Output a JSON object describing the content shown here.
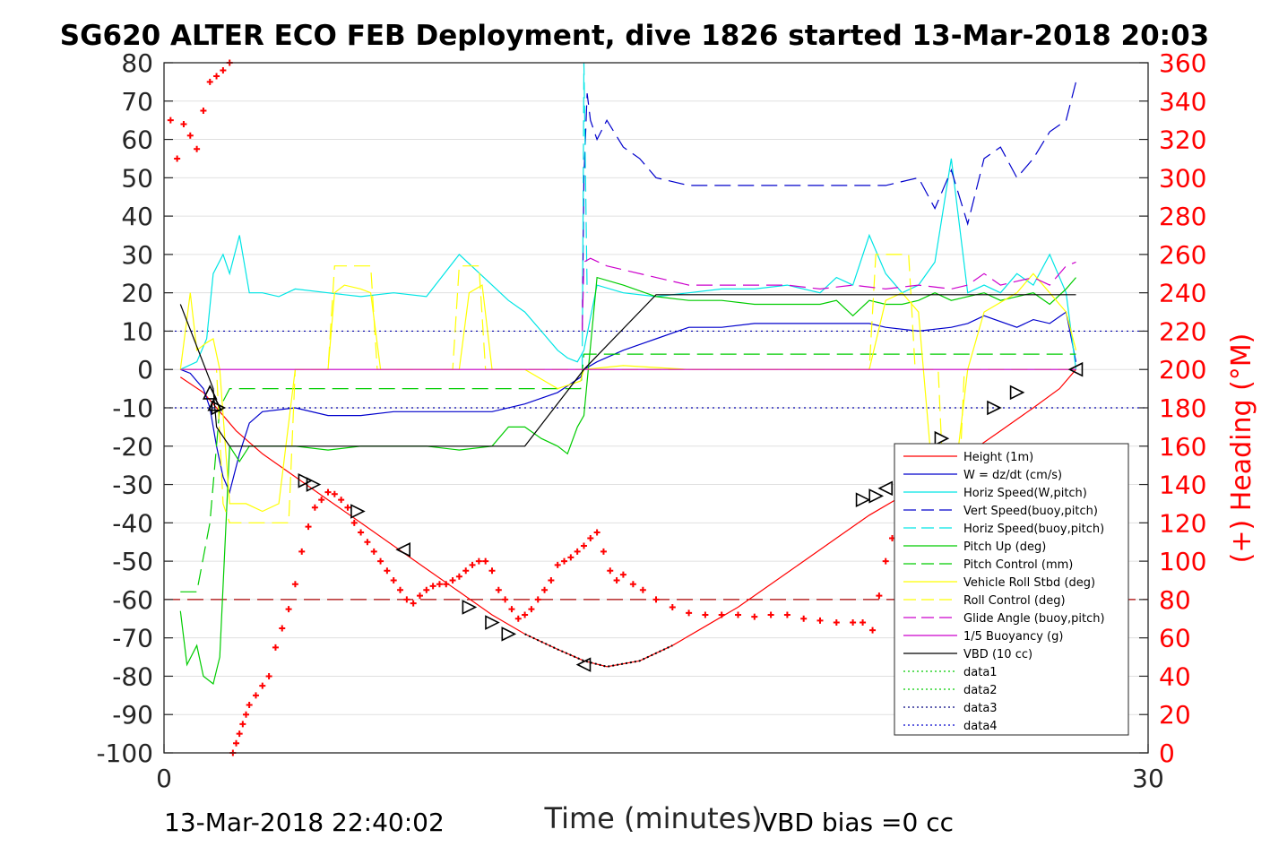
{
  "title": "SG620 ALTER ECO FEB Deployment, dive 1826 started 13-Mar-2018 20:03",
  "xlabel": "Time (minutes)",
  "ylabel_right": "(+) Heading (°M)",
  "footer_left": "13-Mar-2018 22:40:02",
  "footer_right": "VBD bias =0 cc",
  "chart_data": {
    "type": "line",
    "xlim": [
      0,
      30
    ],
    "ylim_left": [
      -100,
      80
    ],
    "ylim_right": [
      0,
      360
    ],
    "xticks": [
      0,
      30
    ],
    "yticks_left": [
      80,
      70,
      60,
      50,
      40,
      30,
      20,
      10,
      0,
      -10,
      -20,
      -30,
      -40,
      -50,
      -60,
      -70,
      -80,
      -90,
      -100
    ],
    "yticks_right": [
      360,
      340,
      320,
      300,
      280,
      260,
      240,
      220,
      200,
      180,
      160,
      140,
      120,
      100,
      80,
      60,
      40,
      20,
      0
    ],
    "grid": "horizontal",
    "legend_position": "lower-right",
    "series": [
      {
        "name": "Height (1m)",
        "color": "#ff0000",
        "style": "solid",
        "x": [
          0.5,
          1.2,
          1.6,
          2.2,
          3,
          4,
          5,
          6,
          7,
          8,
          9,
          10,
          11,
          12,
          12.8,
          13.5,
          14.5,
          15.5,
          16.5,
          17.5,
          18.5,
          19.5,
          20.5,
          21.5,
          22.5,
          23.5,
          24.5,
          25.5,
          26.5,
          27.3,
          27.8
        ],
        "y": [
          -2,
          -6,
          -10,
          -16,
          -22,
          -28,
          -34,
          -40,
          -46,
          -52,
          -58,
          -64,
          -69,
          -73,
          -76,
          -77.5,
          -76,
          -72,
          -67,
          -62,
          -56,
          -50,
          -44,
          -38,
          -33,
          -27,
          -22,
          -16,
          -10,
          -5,
          0
        ]
      },
      {
        "name": "W = dz/dt (cm/s)",
        "color": "#0000cc",
        "style": "solid",
        "x": [
          0.5,
          0.8,
          1.0,
          1.2,
          1.4,
          1.6,
          1.8,
          2.0,
          2.3,
          2.6,
          3,
          4,
          5,
          6,
          7,
          8,
          9,
          10,
          11,
          12,
          12.7,
          12.8,
          13.2,
          14,
          15,
          16,
          17,
          18,
          19,
          20,
          21,
          21.5,
          22,
          23,
          24,
          24.5,
          25,
          26,
          26.5,
          27,
          27.5,
          27.8
        ],
        "y": [
          0,
          -1,
          -3,
          -5,
          -10,
          -20,
          -28,
          -32,
          -22,
          -14,
          -11,
          -10,
          -12,
          -12,
          -11,
          -11,
          -11,
          -11,
          -9,
          -6,
          -2,
          0,
          2,
          5,
          8,
          11,
          11,
          12,
          12,
          12,
          12,
          12,
          11,
          10,
          11,
          12,
          14,
          11,
          13,
          12,
          15,
          2
        ]
      },
      {
        "name": "Horiz Speed(W,pitch)",
        "color": "#00e5e5",
        "style": "solid",
        "x": [
          0.5,
          1.0,
          1.3,
          1.5,
          1.8,
          2.0,
          2.3,
          2.6,
          3,
          3.5,
          4,
          5,
          6,
          7,
          8,
          9,
          10,
          10.5,
          11,
          11.5,
          12,
          12.3,
          12.6,
          12.8,
          13.2,
          14,
          15,
          16,
          17,
          18,
          19,
          20,
          20.5,
          21,
          21.5,
          22,
          22.5,
          23,
          23.5,
          24,
          24.5,
          25,
          25.5,
          26,
          26.5,
          27,
          27.5,
          27.8
        ],
        "y": [
          0,
          2,
          8,
          25,
          30,
          25,
          35,
          20,
          20,
          19,
          21,
          20,
          19,
          20,
          19,
          30,
          22,
          18,
          15,
          10,
          5,
          3,
          2,
          5,
          22,
          20,
          19,
          20,
          21,
          21,
          22,
          20,
          24,
          22,
          35,
          25,
          20,
          22,
          28,
          55,
          20,
          22,
          20,
          25,
          22,
          30,
          20,
          0
        ]
      },
      {
        "name": "Vert Speed(buoy,pitch)",
        "color": "#0000cc",
        "style": "dashed",
        "x": [
          12.75,
          12.8,
          12.9,
          13.0,
          13.2,
          13.5,
          14,
          14.5,
          15,
          16,
          17,
          18,
          19,
          20,
          21,
          22,
          23,
          23.5,
          24,
          24.5,
          25,
          25.5,
          26,
          26.5,
          27,
          27.5,
          27.8
        ],
        "y": [
          10,
          50,
          72,
          65,
          60,
          65,
          58,
          55,
          50,
          48,
          48,
          48,
          48,
          48,
          48,
          48,
          50,
          42,
          52,
          38,
          55,
          58,
          50,
          55,
          62,
          65,
          75
        ]
      },
      {
        "name": "Horiz Speed(buoy,pitch)",
        "color": "#00e5e5",
        "style": "dashed",
        "x": [
          12.75,
          12.8,
          12.9
        ],
        "y": [
          0,
          80,
          20
        ]
      },
      {
        "name": "Pitch Up (deg)",
        "color": "#00cc00",
        "style": "solid",
        "x": [
          0.5,
          0.7,
          1.0,
          1.2,
          1.5,
          1.7,
          2.0,
          2.3,
          2.6,
          3,
          4,
          5,
          6,
          7,
          8,
          9,
          10,
          10.5,
          11,
          11.5,
          12,
          12.3,
          12.6,
          12.8,
          13.2,
          14,
          15,
          16,
          17,
          18,
          19,
          20,
          20.5,
          21,
          21.5,
          22,
          22.5,
          23,
          23.5,
          24,
          24.5,
          25,
          25.5,
          26,
          26.5,
          27,
          27.5,
          27.8
        ],
        "y": [
          -63,
          -77,
          -72,
          -80,
          -82,
          -75,
          -20,
          -24,
          -20,
          -20,
          -20,
          -21,
          -20,
          -20,
          -20,
          -21,
          -20,
          -15,
          -15,
          -18,
          -20,
          -22,
          -15,
          -12,
          24,
          22,
          19,
          18,
          18,
          17,
          17,
          17,
          18,
          14,
          18,
          17,
          17,
          18,
          20,
          18,
          19,
          20,
          18,
          19,
          20,
          17,
          21,
          24
        ]
      },
      {
        "name": "Pitch Control (mm)",
        "color": "#00cc00",
        "style": "dashed",
        "x": [
          0.5,
          1.0,
          1.4,
          1.7,
          2.0,
          3,
          5,
          7,
          9,
          11,
          12.7,
          12.8,
          14,
          16,
          18,
          20,
          22,
          24,
          26,
          27.8
        ],
        "y": [
          -58,
          -58,
          -40,
          -10,
          -5,
          -5,
          -5,
          -5,
          -5,
          -5,
          -5,
          4,
          4,
          4,
          4,
          4,
          4,
          4,
          4,
          4
        ]
      },
      {
        "name": "Vehicle Roll Stbd (deg)",
        "color": "#ffff00",
        "style": "solid",
        "x": [
          0.5,
          0.8,
          1.0,
          1.3,
          1.5,
          1.7,
          2.0,
          2.5,
          3,
          3.5,
          4,
          5,
          5.2,
          5.5,
          6,
          6.3,
          6.6,
          7,
          7.5,
          8,
          9,
          9.3,
          9.7,
          10,
          11,
          12,
          12.7,
          12.8,
          14,
          16,
          18,
          20,
          21.5,
          22,
          22.5,
          23,
          23.5,
          24,
          24.5,
          25,
          26,
          26.5,
          27,
          27.5,
          27.8
        ],
        "y": [
          0,
          20,
          5,
          7,
          8,
          0,
          -35,
          -35,
          -37,
          -35,
          0,
          0,
          20,
          22,
          21,
          20,
          0,
          0,
          0,
          0,
          0,
          20,
          22,
          0,
          0,
          -5,
          -3,
          0,
          1,
          0,
          0,
          0,
          0,
          18,
          20,
          15,
          -35,
          -36,
          0,
          15,
          20,
          25,
          20,
          15,
          5
        ]
      },
      {
        "name": "Roll Control (deg)",
        "color": "#ffff00",
        "style": "dashed",
        "x": [
          0.5,
          1.6,
          1.8,
          2.0,
          3.5,
          3.8,
          4.0,
          5.0,
          5.2,
          6.3,
          6.5,
          8.8,
          9.0,
          9.6,
          9.8,
          12.7,
          12.8,
          21.5,
          21.7,
          22.7,
          22.9,
          23.6,
          23.8,
          24.2,
          24.4,
          27.8
        ],
        "y": [
          0,
          0,
          -35,
          -40,
          -40,
          -40,
          0,
          0,
          27,
          27,
          0,
          0,
          27,
          27,
          0,
          0,
          0,
          0,
          30,
          30,
          0,
          0,
          -38,
          -38,
          0,
          0
        ]
      },
      {
        "name": "Glide Angle (buoy,pitch)",
        "color": "#cc00cc",
        "style": "dashed",
        "x": [
          12.75,
          12.8,
          13.0,
          13.5,
          14,
          15,
          16,
          17,
          18,
          19,
          20,
          21,
          22,
          23,
          24,
          24.5,
          25,
          25.5,
          26,
          26.5,
          27,
          27.5,
          27.8
        ],
        "y": [
          10,
          28,
          29,
          27,
          26,
          24,
          22,
          22,
          22,
          22,
          21,
          22,
          21,
          22,
          21,
          22,
          25,
          22,
          23,
          24,
          22,
          27,
          28
        ]
      },
      {
        "name": "1/5 Buoyancy (g)",
        "color": "#cc00cc",
        "style": "solid",
        "x": [
          0.5,
          27.8
        ],
        "y": [
          0,
          0
        ]
      },
      {
        "name": "VBD (10 cc)",
        "color": "#000000",
        "style": "solid",
        "x": [
          0.5,
          1.5,
          1.6,
          2.0,
          10.0,
          11.0,
          12.8,
          15.0,
          27.8
        ],
        "y": [
          17,
          -5,
          -15,
          -20,
          -20,
          -20,
          0,
          19.5,
          19.5
        ]
      },
      {
        "name": "data1",
        "color": "#00cc00",
        "style": "dotted",
        "x": [],
        "y": []
      },
      {
        "name": "data2",
        "color": "#00cc00",
        "style": "dotted",
        "x": [],
        "y": []
      },
      {
        "name": "data3",
        "color": "#000080",
        "style": "dotted",
        "x": [],
        "y": []
      },
      {
        "name": "data4",
        "color": "#0000cc",
        "style": "dotted",
        "x": [],
        "y": []
      }
    ],
    "reference_lines": [
      {
        "y": 10,
        "color": "#0000aa",
        "style": "dotted"
      },
      {
        "y": -10,
        "color": "#0000aa",
        "style": "dotted"
      },
      {
        "y": -60,
        "color": "#aa0000",
        "style": "dashed"
      }
    ],
    "heading": {
      "color": "#ff0000",
      "marker": "+",
      "axis": "right",
      "x": [
        0.2,
        0.4,
        0.6,
        0.8,
        1.0,
        1.2,
        1.4,
        1.6,
        1.8,
        2.0,
        2.1,
        2.2,
        2.3,
        2.4,
        2.5,
        2.6,
        2.8,
        3.0,
        3.2,
        3.4,
        3.6,
        3.8,
        4.0,
        4.2,
        4.4,
        4.6,
        4.8,
        5.0,
        5.2,
        5.4,
        5.6,
        5.8,
        6.0,
        6.2,
        6.4,
        6.6,
        6.8,
        7.0,
        7.2,
        7.4,
        7.6,
        7.8,
        8.0,
        8.2,
        8.4,
        8.6,
        8.8,
        9.0,
        9.2,
        9.4,
        9.6,
        9.8,
        10.0,
        10.2,
        10.4,
        10.6,
        10.8,
        11.0,
        11.2,
        11.4,
        11.6,
        11.8,
        12.0,
        12.2,
        12.4,
        12.6,
        12.8,
        13.0,
        13.2,
        13.4,
        13.6,
        13.8,
        14.0,
        14.3,
        14.6,
        15.0,
        15.5,
        16.0,
        16.5,
        17.0,
        17.5,
        18.0,
        18.5,
        19.0,
        19.5,
        20.0,
        20.5,
        21.0,
        21.3,
        21.6,
        21.8,
        22.0,
        22.2,
        22.4,
        22.6,
        22.8,
        23.0,
        23.2,
        23.4,
        23.6,
        23.8,
        24.0,
        24.2,
        24.4
      ],
      "y": [
        330,
        310,
        328,
        322,
        315,
        335,
        350,
        353,
        356,
        360,
        0,
        5,
        10,
        15,
        20,
        25,
        30,
        35,
        40,
        55,
        65,
        75,
        88,
        105,
        118,
        128,
        132,
        136,
        135,
        132,
        128,
        120,
        115,
        110,
        105,
        100,
        95,
        90,
        85,
        80,
        78,
        82,
        85,
        87,
        88,
        88,
        90,
        92,
        95,
        98,
        100,
        100,
        95,
        85,
        80,
        75,
        70,
        72,
        75,
        80,
        85,
        90,
        98,
        100,
        102,
        105,
        108,
        112,
        115,
        105,
        95,
        90,
        93,
        88,
        85,
        80,
        76,
        73,
        72,
        72,
        72,
        71,
        72,
        72,
        70,
        69,
        68,
        68,
        68,
        64,
        82,
        100,
        112,
        118,
        128,
        132,
        140,
        145,
        140,
        132,
        110,
        85,
        65,
        55
      ]
    },
    "markers": {
      "color": "#000000",
      "x": [
        1.4,
        1.55,
        1.65,
        4.3,
        4.55,
        5.9,
        7.3,
        9.3,
        10.0,
        10.5,
        12.8,
        21.3,
        21.7,
        22.0,
        22.9,
        23.2,
        23.7,
        25.3,
        26.0,
        27.8
      ],
      "y": [
        -6,
        -9,
        -10,
        -29,
        -30,
        -37,
        -47,
        -62,
        -66,
        -69,
        -77,
        -34,
        -33,
        -31,
        -24,
        -22,
        -18,
        -10,
        -6,
        0
      ],
      "dir": [
        "up",
        "up",
        "right",
        "right",
        "right",
        "right",
        "left",
        "right",
        "right",
        "right",
        "left",
        "right",
        "right",
        "left",
        "right",
        "right",
        "right",
        "right",
        "right",
        "left"
      ]
    }
  }
}
